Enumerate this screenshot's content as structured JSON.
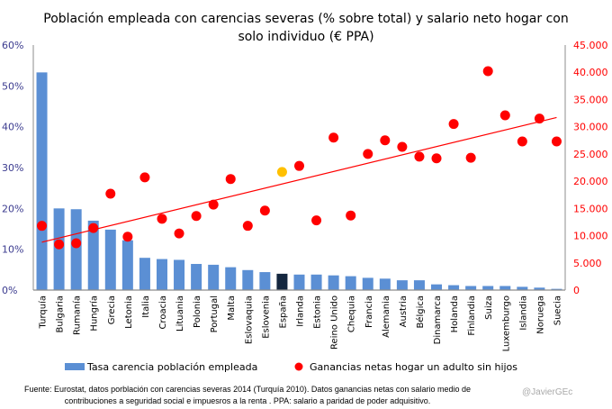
{
  "chart_data": {
    "type": "bar",
    "title_lines": [
      "Población empleada con carencias severas (% sobre total) y salario neto hogar con",
      "solo individuo (€ PPA)"
    ],
    "categories": [
      "Turquía",
      "Bulgaria",
      "Rumanía",
      "Hungría",
      "Grecia",
      "Letonia",
      "Italia",
      "Croacia",
      "Lituania",
      "Polonia",
      "Portugal",
      "Malta",
      "Eslovaquia",
      "Eslovenia",
      "España",
      "Irlanda",
      "Estonia",
      "Reino Unido",
      "Chequia",
      "Francia",
      "Alemania",
      "Austria",
      "Bélgica",
      "Dinamarca",
      "Holanda",
      "Finlandia",
      "Suiza",
      "Luxemburgo",
      "Islandia",
      "Noruega",
      "Suecia"
    ],
    "series": [
      {
        "name": "Tasa carencia población empleada",
        "type": "bar",
        "axis": "left",
        "color": "#5b8fd4",
        "highlight": {
          "category": "España",
          "color": "#14273f"
        },
        "values": [
          53.3,
          20.0,
          19.8,
          17.0,
          14.8,
          12.2,
          7.9,
          7.6,
          7.4,
          6.4,
          6.2,
          5.6,
          4.9,
          4.4,
          4.0,
          3.8,
          3.8,
          3.6,
          3.4,
          3.0,
          2.8,
          2.4,
          2.4,
          1.4,
          1.2,
          1.0,
          1.0,
          1.0,
          0.8,
          0.6,
          0.3
        ]
      },
      {
        "name": "Ganancias netas hogar un adulto sin hijos",
        "type": "scatter",
        "axis": "right",
        "color": "#ff0000",
        "highlight": {
          "category": "España",
          "color": "#ffc000"
        },
        "values": [
          11800,
          8400,
          8600,
          11400,
          17700,
          9800,
          20700,
          13100,
          10400,
          13600,
          15700,
          20400,
          11800,
          14600,
          21700,
          22800,
          12800,
          28000,
          13700,
          25000,
          27500,
          26300,
          24500,
          24200,
          30500,
          24300,
          40200,
          32100,
          27300,
          31500,
          27300
        ]
      }
    ],
    "trendline": {
      "series": "Ganancias netas hogar un adulto sin hijos",
      "type": "linear",
      "color": "#ff0000"
    },
    "left_axis": {
      "min": 0,
      "max": 60,
      "step": 10,
      "tick_labels": [
        "0%",
        "10%",
        "20%",
        "30%",
        "40%",
        "50%",
        "60%"
      ]
    },
    "right_axis": {
      "min": 0,
      "max": 45000,
      "step": 5000,
      "tick_labels": [
        "0",
        "5.000",
        "10.000",
        "15.000",
        "20.000",
        "25.000",
        "30.000",
        "35.000",
        "40.000",
        "45.000"
      ]
    },
    "grid": false,
    "legend": {
      "placement": "bottom",
      "items": [
        {
          "label": "Tasa carencia población empleada",
          "symbol": "bar",
          "color": "#5b8fd4"
        },
        {
          "label": "Ganancias netas hogar un adulto sin hijos",
          "symbol": "dot",
          "color": "#ff0000"
        }
      ]
    },
    "xlabel": "",
    "ylabel": ""
  },
  "footer": {
    "source_line1": "Fuente: Eurostat, datos porblación con carencias severas 2014 (Turquía 2010). Datos ganancias netas con salario medio de",
    "source_line2": "contribuciones a seguridad  social e impuesros a la renta .  PPA: salario a paridad de poder adquisitivo.",
    "handle": "@JavierGEc"
  }
}
